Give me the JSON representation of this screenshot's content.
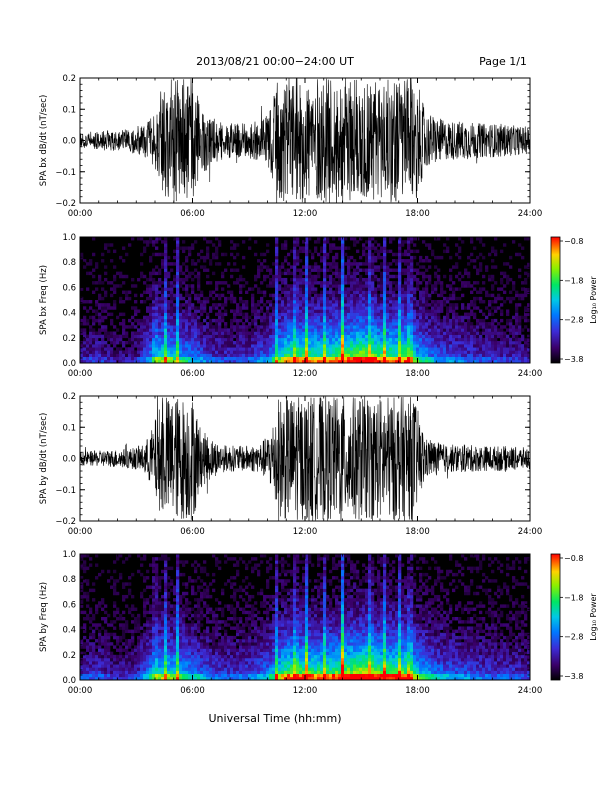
{
  "header": {
    "title": "2013/08/21  00:00−24:00 UT",
    "page": "Page 1/1"
  },
  "xlabel": "Universal Time (hh:mm)",
  "chart_data": [
    {
      "type": "line",
      "ylabel": "SPA bx dB/dt (nT/sec)",
      "x_ticks": [
        "00:00",
        "06:00",
        "12:00",
        "18:00",
        "24:00"
      ],
      "y_ticks": [
        "0.2",
        "0.1",
        "0.0",
        "−0.1",
        "−0.2"
      ],
      "xlim": [
        0,
        24
      ],
      "ylim": [
        -0.2,
        0.2
      ],
      "envelope": {
        "hours": [
          0,
          1.5,
          2.5,
          3.0,
          3.4,
          3.8,
          4.1,
          4.8,
          5.4,
          6.0,
          6.5,
          7.5,
          8.5,
          9.5,
          10.0,
          10.6,
          11.2,
          12.0,
          13.5,
          15.0,
          16.5,
          17.8,
          18.0,
          18.5,
          19.5,
          20.5,
          21.5,
          22.5,
          23.5,
          24.0
        ],
        "amplitude": [
          0.03,
          0.035,
          0.04,
          0.05,
          0.06,
          0.08,
          0.15,
          0.2,
          0.2,
          0.2,
          0.12,
          0.07,
          0.06,
          0.07,
          0.09,
          0.2,
          0.2,
          0.2,
          0.2,
          0.2,
          0.2,
          0.2,
          0.18,
          0.1,
          0.07,
          0.07,
          0.06,
          0.06,
          0.05,
          0.05
        ]
      }
    },
    {
      "type": "heatmap",
      "ylabel": "SPA bx Freq (Hz)",
      "x_ticks": [
        "00:00",
        "06:00",
        "12:00",
        "18:00",
        "24:00"
      ],
      "y_ticks": [
        "1.0",
        "0.8",
        "0.6",
        "0.4",
        "0.2",
        "0.0"
      ],
      "xlim": [
        0,
        24
      ],
      "ylim": [
        0,
        1
      ],
      "colorbar": {
        "label": "Log₁₀ Power",
        "ticks": [
          "−0.8",
          "−1.8",
          "−2.8",
          "−3.8"
        ],
        "range": [
          -3.8,
          -0.8
        ]
      },
      "activity": {
        "hours": [
          0,
          1,
          2,
          3,
          3.5,
          4,
          4.5,
          5,
          6,
          7,
          8,
          9,
          10,
          10.5,
          11,
          12,
          13,
          14,
          15,
          16,
          17,
          17.5,
          18,
          19,
          20,
          21,
          22,
          23,
          24
        ],
        "level": [
          0.2,
          0.25,
          0.15,
          0.2,
          0.35,
          0.55,
          0.7,
          0.6,
          0.45,
          0.3,
          0.25,
          0.3,
          0.4,
          0.6,
          0.8,
          0.8,
          0.75,
          0.85,
          0.95,
          0.85,
          0.8,
          0.85,
          0.6,
          0.4,
          0.35,
          0.3,
          0.25,
          0.25,
          0.2
        ]
      },
      "bright_lines_hours": [
        4.0,
        4.6,
        5.2,
        10.5,
        11.5,
        12.1,
        13.0,
        14.0,
        15.5,
        16.2,
        17.0,
        17.6
      ]
    },
    {
      "type": "line",
      "ylabel": "SPA by dB/dt (nT/sec)",
      "x_ticks": [
        "00:00",
        "06:00",
        "12:00",
        "18:00",
        "24:00"
      ],
      "y_ticks": [
        "0.2",
        "0.1",
        "0.0",
        "−0.1",
        "−0.2"
      ],
      "xlim": [
        0,
        24
      ],
      "ylim": [
        -0.2,
        0.2
      ],
      "envelope": {
        "hours": [
          0,
          1.5,
          2.5,
          3.0,
          3.4,
          3.8,
          4.1,
          4.8,
          5.4,
          6.0,
          6.5,
          7.5,
          8.5,
          9.5,
          10.0,
          10.6,
          11.2,
          12.0,
          13.5,
          15.0,
          16.5,
          17.8,
          18.0,
          18.5,
          19.5,
          20.5,
          21.5,
          22.5,
          23.5,
          24.0
        ],
        "amplitude": [
          0.025,
          0.03,
          0.035,
          0.04,
          0.05,
          0.1,
          0.16,
          0.2,
          0.2,
          0.2,
          0.1,
          0.05,
          0.045,
          0.05,
          0.08,
          0.2,
          0.2,
          0.2,
          0.2,
          0.2,
          0.2,
          0.2,
          0.16,
          0.07,
          0.05,
          0.05,
          0.045,
          0.045,
          0.04,
          0.04
        ]
      }
    },
    {
      "type": "heatmap",
      "ylabel": "SPA by Freq (Hz)",
      "x_ticks": [
        "00:00",
        "06:00",
        "12:00",
        "18:00",
        "24:00"
      ],
      "y_ticks": [
        "1.0",
        "0.8",
        "0.6",
        "0.4",
        "0.2",
        "0.0"
      ],
      "xlim": [
        0,
        24
      ],
      "ylim": [
        0,
        1
      ],
      "colorbar": {
        "label": "Log₁₀ Power",
        "ticks": [
          "−0.8",
          "−1.8",
          "−2.8",
          "−3.8"
        ],
        "range": [
          -3.8,
          -0.8
        ]
      },
      "activity": {
        "hours": [
          0,
          1,
          2,
          3,
          3.5,
          4,
          4.5,
          5,
          6,
          7,
          8,
          9,
          10,
          10.5,
          11,
          12,
          13,
          14,
          15,
          16,
          17,
          17.5,
          18,
          19,
          20,
          21,
          22,
          23,
          24
        ],
        "level": [
          0.25,
          0.3,
          0.2,
          0.25,
          0.4,
          0.6,
          0.7,
          0.65,
          0.5,
          0.35,
          0.3,
          0.35,
          0.45,
          0.65,
          0.85,
          0.85,
          0.8,
          0.9,
          1.0,
          0.9,
          0.85,
          0.9,
          0.65,
          0.45,
          0.4,
          0.35,
          0.3,
          0.3,
          0.25
        ]
      },
      "bright_lines_hours": [
        4.0,
        4.6,
        5.2,
        10.5,
        11.5,
        12.1,
        13.0,
        14.0,
        15.5,
        16.2,
        17.0,
        17.6
      ]
    }
  ]
}
